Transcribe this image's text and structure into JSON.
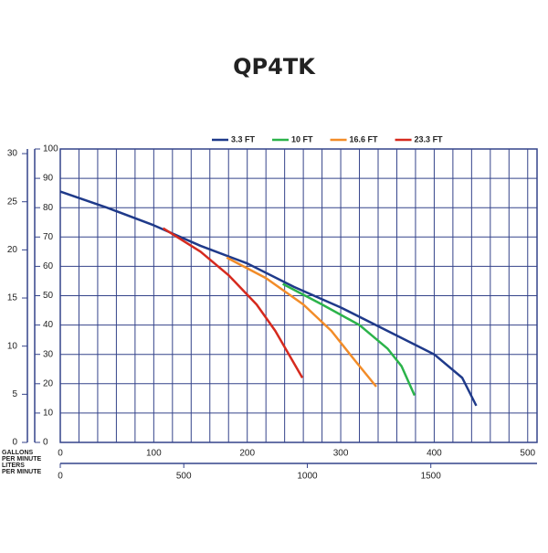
{
  "chart_data": {
    "type": "line",
    "title": "QP4TK",
    "x_label_lines": [
      "GALLONS",
      "PER MINUTE"
    ],
    "x2_label_lines": [
      "LITERS",
      "PER MINUTE"
    ],
    "xlim": [
      0,
      510
    ],
    "xticks": [
      0,
      100,
      200,
      300,
      400,
      500
    ],
    "x2lim": [
      0,
      1930
    ],
    "x2ticks": [
      0,
      500,
      1000,
      1500
    ],
    "ylim": [
      0,
      100
    ],
    "yticks": [
      0,
      10,
      20,
      30,
      40,
      50,
      60,
      70,
      80,
      90,
      100
    ],
    "y2lim": [
      0,
      30.48
    ],
    "y2ticks": [
      0,
      5,
      10,
      15,
      20,
      25,
      30
    ],
    "grid": true,
    "legend": "top",
    "series": [
      {
        "name": "3.3 FT",
        "color": "#1f3a8a",
        "x": [
          0,
          50,
          100,
          150,
          200,
          250,
          300,
          350,
          400,
          430,
          445
        ],
        "values": [
          85.5,
          80,
          74,
          67,
          61,
          53,
          46,
          38,
          30,
          22,
          12.5
        ]
      },
      {
        "name": "10 FT",
        "color": "#2bb34a",
        "x": [
          238,
          280,
          320,
          350,
          365,
          379
        ],
        "values": [
          54,
          47,
          40,
          32,
          26,
          16
        ]
      },
      {
        "name": "16.6 FT",
        "color": "#f28c28",
        "x": [
          178,
          220,
          260,
          290,
          315,
          338
        ],
        "values": [
          63,
          56,
          47,
          38,
          28,
          19
        ]
      },
      {
        "name": "23.3 FT",
        "color": "#d62a1e",
        "x": [
          110,
          150,
          180,
          210,
          230,
          259
        ],
        "values": [
          73,
          65,
          57,
          47,
          38,
          22
        ]
      }
    ]
  }
}
